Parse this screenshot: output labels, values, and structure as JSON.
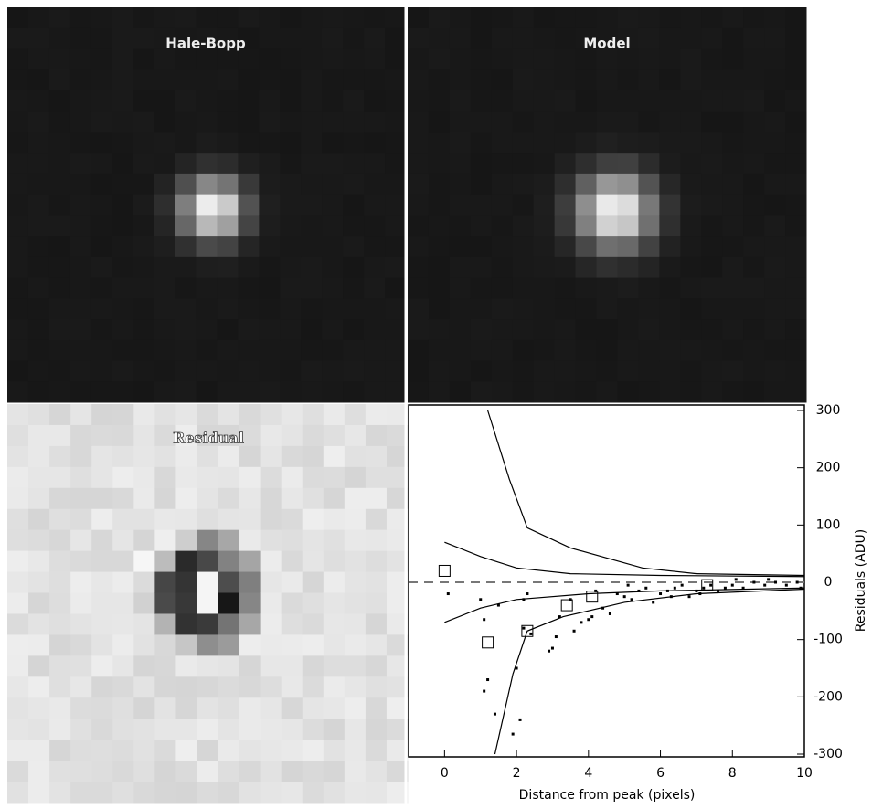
{
  "panels": [
    {
      "title": "Hale-Bopp"
    },
    {
      "title": "Model"
    },
    {
      "title": "Residual"
    }
  ],
  "chart_data": {
    "type": "scatter",
    "xlabel": "Distance  from  peak  (pixels)",
    "ylabel": "Residuals (ADU)",
    "xlim": [
      -1,
      10
    ],
    "ylim": [
      -300,
      300
    ],
    "xticks": [
      0,
      2,
      4,
      6,
      8,
      10
    ],
    "yticks": [
      -300,
      -200,
      -100,
      0,
      100,
      200,
      300
    ],
    "reference_line": 0,
    "series": [
      {
        "style": "dot",
        "color": "#000",
        "x": [
          0.1,
          1.0,
          1.2,
          1.1,
          1.1,
          1.4,
          1.9,
          2.1,
          2.0,
          2.2,
          2.3,
          2.4,
          2.9,
          3.0,
          3.2,
          3.1,
          3.6,
          3.8,
          4.0,
          4.1,
          4.4,
          4.6,
          4.8,
          5.0,
          5.2,
          5.4,
          5.6,
          5.8,
          6.0,
          6.2,
          6.4,
          6.6,
          6.8,
          7.0,
          7.2,
          7.4,
          7.6,
          7.8,
          8.0,
          8.3,
          8.6,
          8.9,
          9.2,
          9.5,
          9.8,
          9.9,
          2.2,
          1.5,
          3.5,
          4.2,
          5.1,
          6.3,
          7.1,
          8.1,
          9.0
        ],
        "values": [
          -20,
          -30,
          -170,
          -190,
          -65,
          -230,
          -265,
          -240,
          -150,
          -30,
          -20,
          -90,
          -120,
          -115,
          -60,
          -95,
          -85,
          -70,
          -65,
          -60,
          -45,
          -55,
          -20,
          -25,
          -30,
          -15,
          -10,
          -35,
          -20,
          -15,
          -10,
          -5,
          -25,
          -15,
          -10,
          -5,
          -15,
          -10,
          -5,
          -10,
          0,
          -5,
          0,
          -5,
          0,
          -10,
          -80,
          -40,
          -30,
          -15,
          -5,
          -25,
          -20,
          5,
          5
        ]
      },
      {
        "style": "box",
        "color": "#000",
        "x": [
          0.0,
          1.2,
          2.3,
          3.4,
          4.1,
          7.3
        ],
        "values": [
          20,
          -105,
          -85,
          -40,
          -25,
          -5
        ]
      },
      {
        "style": "line",
        "color": "#000",
        "x": [
          1.2,
          1.8,
          2.3,
          3.5,
          5.5,
          7.0,
          10.0
        ],
        "values": [
          300,
          180,
          95,
          60,
          25,
          15,
          12
        ]
      },
      {
        "style": "line",
        "color": "#000",
        "x": [
          0.0,
          1.0,
          2.0,
          3.5,
          6.0,
          10.0
        ],
        "values": [
          70,
          45,
          25,
          15,
          12,
          10
        ]
      },
      {
        "style": "line",
        "color": "#000",
        "x": [
          0.0,
          1.0,
          2.0,
          4.0,
          6.0,
          10.0
        ],
        "values": [
          -70,
          -45,
          -30,
          -20,
          -15,
          -10
        ]
      },
      {
        "style": "line",
        "color": "#000",
        "x": [
          1.4,
          1.9,
          2.3,
          3.3,
          5.0,
          7.0,
          10.0
        ],
        "values": [
          -300,
          -160,
          -85,
          -60,
          -35,
          -20,
          -12
        ]
      }
    ]
  }
}
